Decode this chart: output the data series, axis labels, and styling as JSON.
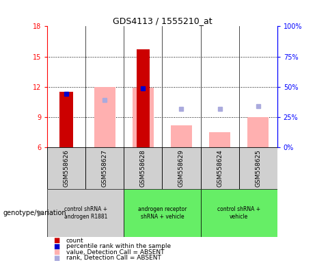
{
  "title": "GDS4113 / 1555210_at",
  "samples": [
    "GSM558626",
    "GSM558627",
    "GSM558628",
    "GSM558629",
    "GSM558624",
    "GSM558625"
  ],
  "group_defs": [
    {
      "start": 0,
      "end": 1,
      "color": "#d0d0d0",
      "label": "control shRNA +\nandrogen R1881"
    },
    {
      "start": 2,
      "end": 3,
      "color": "#66ee66",
      "label": "androgen receptor\nshRNA + vehicle"
    },
    {
      "start": 4,
      "end": 5,
      "color": "#66ee66",
      "label": "control shRNA +\nvehicle"
    }
  ],
  "red_bars": [
    11.5,
    null,
    15.7,
    null,
    null,
    null
  ],
  "pink_bars": [
    null,
    12.0,
    11.9,
    8.2,
    7.5,
    9.0
  ],
  "blue_squares": [
    11.3,
    null,
    11.85,
    null,
    null,
    null
  ],
  "light_blue_squares": [
    null,
    10.7,
    null,
    9.8,
    9.8,
    10.1
  ],
  "ylim": [
    6,
    18
  ],
  "yticks": [
    6,
    9,
    12,
    15,
    18
  ],
  "red_color": "#cc0000",
  "pink_color": "#ffb0b0",
  "blue_color": "#0000cc",
  "light_blue_color": "#aaaadd",
  "sample_box_color": "#d0d0d0",
  "plot_bg": "#ffffff"
}
